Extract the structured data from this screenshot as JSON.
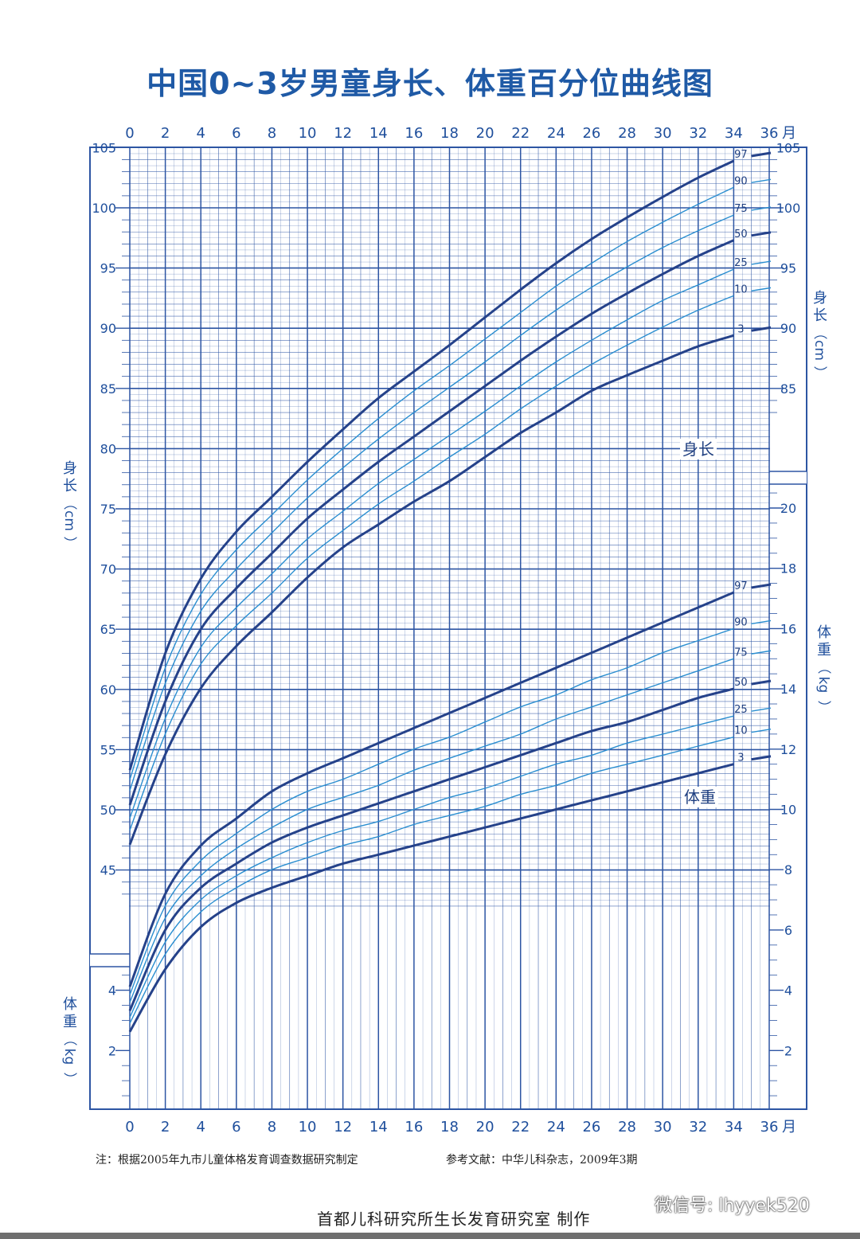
{
  "title": "中国0~3岁男童身长、体重百分位曲线图",
  "month_unit": "月",
  "left_length_label": [
    "身",
    "长",
    "（",
    "cm",
    "）"
  ],
  "left_weight_label": [
    "体",
    "重",
    "（",
    "kg",
    "）"
  ],
  "right_length_label": [
    "身",
    "长",
    "（",
    "cm",
    "）"
  ],
  "right_weight_label": [
    "体",
    "重",
    "（",
    "kg",
    "）"
  ],
  "in_chart_length_label": "身长",
  "in_chart_weight_label": "体重",
  "footnote": "注：根据2005年九市儿童体格发育调查数据研究制定",
  "reference": "参考文献：中华儿科杂志，2009年3期",
  "producer": "首都儿科研究所生长发育研究室  制作",
  "watermark": "微信号: lhyyek520",
  "colors": {
    "grid": "#2d55a3",
    "major_curve": "#25428a",
    "minor_curve": "#2a8ed0",
    "text": "#1f4f9c",
    "title": "#1f5aa6"
  },
  "chart_data": [
    {
      "type": "line",
      "title": "身长",
      "xlabel": "月",
      "ylabel": "身长（cm）",
      "xlim": [
        0,
        36
      ],
      "ylim": [
        42,
        110
      ],
      "x_ticks": [
        0,
        2,
        4,
        6,
        8,
        10,
        12,
        14,
        16,
        18,
        20,
        22,
        24,
        26,
        28,
        30,
        32,
        34,
        36
      ],
      "y_ticks_left": [
        45,
        50,
        55,
        60,
        65,
        70,
        75,
        80,
        85,
        90,
        95,
        100,
        105
      ],
      "y_ticks_right": [
        85,
        90,
        95,
        100,
        105
      ],
      "grid": true,
      "x": [
        0,
        2,
        4,
        6,
        8,
        10,
        12,
        14,
        16,
        18,
        20,
        22,
        24,
        26,
        28,
        30,
        32,
        34
      ],
      "series": [
        {
          "name": "97",
          "major": true,
          "values": [
            53.3,
            63.0,
            69.2,
            73.1,
            76.0,
            78.9,
            81.6,
            84.2,
            86.4,
            88.6,
            90.9,
            93.2,
            95.4,
            97.4,
            99.2,
            100.9,
            102.5,
            103.9
          ]
        },
        {
          "name": "90",
          "major": false,
          "values": [
            52.5,
            61.8,
            67.9,
            71.6,
            74.5,
            77.4,
            80.0,
            82.5,
            84.8,
            86.9,
            89.1,
            91.3,
            93.5,
            95.4,
            97.2,
            98.8,
            100.3,
            101.7
          ]
        },
        {
          "name": "75",
          "major": false,
          "values": [
            51.6,
            60.5,
            66.5,
            70.0,
            73.0,
            75.9,
            78.4,
            80.8,
            83.0,
            85.1,
            87.2,
            89.4,
            91.5,
            93.4,
            95.1,
            96.7,
            98.1,
            99.4
          ]
        },
        {
          "name": "50",
          "major": true,
          "values": [
            50.4,
            59.0,
            65.0,
            68.4,
            71.3,
            74.2,
            76.6,
            78.9,
            81.0,
            83.1,
            85.2,
            87.3,
            89.3,
            91.2,
            92.9,
            94.5,
            96.0,
            97.3
          ]
        },
        {
          "name": "25",
          "major": false,
          "values": [
            49.3,
            57.6,
            63.5,
            66.8,
            69.6,
            72.5,
            74.8,
            77.1,
            79.1,
            81.1,
            83.1,
            85.2,
            87.2,
            89.0,
            90.7,
            92.3,
            93.6,
            94.9
          ]
        },
        {
          "name": "10",
          "major": false,
          "values": [
            48.3,
            56.3,
            62.1,
            65.3,
            68.0,
            70.9,
            73.2,
            75.4,
            77.3,
            79.3,
            81.2,
            83.3,
            85.2,
            87.0,
            88.6,
            90.1,
            91.5,
            92.7
          ]
        },
        {
          "name": "3",
          "major": true,
          "values": [
            47.1,
            54.6,
            60.1,
            63.6,
            66.4,
            69.3,
            71.8,
            73.7,
            75.6,
            77.3,
            79.3,
            81.3,
            83.0,
            84.8,
            86.1,
            87.3,
            88.5,
            89.4
          ]
        }
      ]
    },
    {
      "type": "line",
      "title": "体重",
      "xlabel": "月",
      "ylabel": "体重（kg）",
      "xlim": [
        0,
        36
      ],
      "ylim": [
        0,
        22
      ],
      "x_ticks": [
        0,
        2,
        4,
        6,
        8,
        10,
        12,
        14,
        16,
        18,
        20,
        22,
        24,
        26,
        28,
        30,
        32,
        34,
        36
      ],
      "y_ticks_left": [
        2,
        4
      ],
      "y_ticks_right": [
        2,
        4,
        6,
        8,
        10,
        12,
        14,
        16,
        18,
        20
      ],
      "grid": true,
      "x": [
        0,
        2,
        4,
        6,
        8,
        10,
        12,
        14,
        16,
        18,
        20,
        22,
        24,
        26,
        28,
        30,
        32,
        34
      ],
      "series": [
        {
          "name": "97",
          "major": true,
          "values": [
            4.12,
            7.2,
            8.8,
            9.7,
            10.6,
            11.2,
            11.7,
            12.2,
            12.7,
            13.2,
            13.7,
            14.2,
            14.7,
            15.2,
            15.7,
            16.2,
            16.7,
            17.2
          ]
        },
        {
          "name": "90",
          "major": false,
          "values": [
            3.85,
            6.8,
            8.3,
            9.2,
            10.0,
            10.6,
            11.0,
            11.5,
            12.0,
            12.4,
            12.9,
            13.4,
            13.8,
            14.3,
            14.7,
            15.2,
            15.6,
            16.0
          ]
        },
        {
          "name": "75",
          "major": false,
          "values": [
            3.6,
            6.4,
            7.8,
            8.7,
            9.4,
            10.0,
            10.4,
            10.8,
            11.3,
            11.7,
            12.1,
            12.5,
            13.0,
            13.4,
            13.8,
            14.2,
            14.6,
            15.0
          ]
        },
        {
          "name": "50",
          "major": true,
          "values": [
            3.32,
            6.0,
            7.4,
            8.2,
            8.9,
            9.4,
            9.8,
            10.2,
            10.6,
            11.0,
            11.4,
            11.8,
            12.2,
            12.6,
            12.9,
            13.3,
            13.7,
            14.0
          ]
        },
        {
          "name": "25",
          "major": false,
          "values": [
            3.1,
            5.6,
            7.0,
            7.8,
            8.4,
            8.9,
            9.3,
            9.6,
            10.0,
            10.4,
            10.7,
            11.1,
            11.5,
            11.8,
            12.2,
            12.5,
            12.8,
            13.1
          ]
        },
        {
          "name": "10",
          "major": false,
          "values": [
            2.9,
            5.2,
            6.6,
            7.4,
            8.0,
            8.4,
            8.8,
            9.1,
            9.5,
            9.8,
            10.1,
            10.5,
            10.8,
            11.2,
            11.5,
            11.8,
            12.1,
            12.4
          ]
        },
        {
          "name": "3",
          "major": true,
          "values": [
            2.62,
            4.7,
            6.1,
            6.9,
            7.4,
            7.8,
            8.2,
            8.5,
            8.8,
            9.1,
            9.4,
            9.7,
            10.0,
            10.3,
            10.6,
            10.9,
            11.2,
            11.5
          ]
        }
      ]
    }
  ]
}
